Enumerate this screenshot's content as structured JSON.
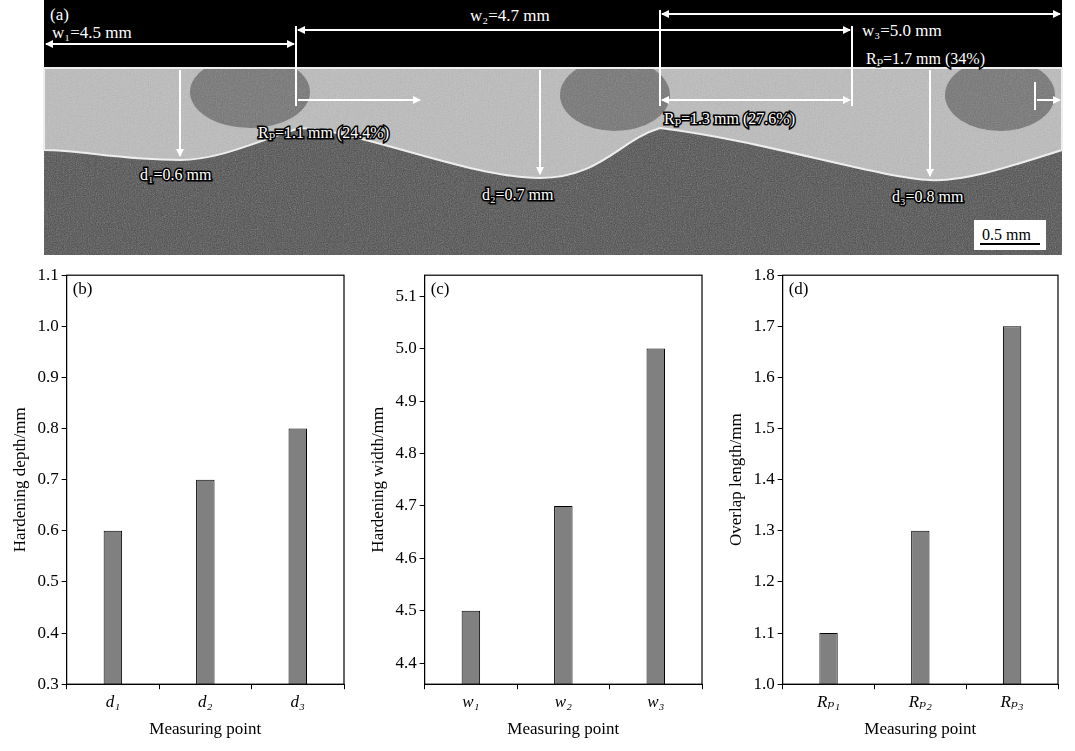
{
  "micrograph": {
    "panel": "(a)",
    "widths": [
      "w₁=4.5 mm",
      "w₂=4.7 mm",
      "w₃=5.0 mm"
    ],
    "overlaps": [
      "Rₚ=1.1 mm (24.4%)",
      "Rₚ=1.3 mm (27.6%)",
      "Rₚ=1.7 mm (34%)"
    ],
    "depths": [
      "d₁=0.6 mm",
      "d₂=0.7 mm",
      "d₃=0.8 mm"
    ],
    "scale_bar": "0.5 mm"
  },
  "chart_data": [
    {
      "type": "bar",
      "title": "(b)",
      "x_label": "Measuring point",
      "y_label": "Hardening depth/mm",
      "categories": [
        "d₁",
        "d₂",
        "d₃"
      ],
      "values": [
        0.6,
        0.7,
        0.8
      ],
      "color": "#808080",
      "ylim": [
        0.3,
        1.1
      ],
      "yticks": [
        0.3,
        0.4,
        0.5,
        0.6,
        0.7,
        0.8,
        0.9,
        {
          "value": 1,
          "label": "1.0"
        },
        1.1
      ],
      "grid": false,
      "legend": false
    },
    {
      "type": "bar",
      "title": "(c)",
      "x_label": "Measuring point",
      "y_label": "Hardening width/mm",
      "categories": [
        "w₁",
        "w₂",
        "w₃"
      ],
      "values": [
        4.5,
        4.7,
        5.0
      ],
      "color": "#808080",
      "ylim": [
        4.36,
        5.14
      ],
      "yticks": [
        4.4,
        4.5,
        4.6,
        4.7,
        4.8,
        4.9,
        {
          "value": 5,
          "label": "5.0"
        },
        5.1
      ],
      "grid": false,
      "legend": false
    },
    {
      "type": "bar",
      "title": "(d)",
      "x_label": "Measuring point",
      "y_label": "Overlap length/mm",
      "categories": [
        "Rₚ₁",
        "Rₚ₂",
        "Rₚ₃"
      ],
      "values": [
        1.1,
        1.3,
        1.7
      ],
      "color": "#808080",
      "ylim": [
        1,
        1.8
      ],
      "yticks": [
        {
          "value": 1,
          "label": "1.0"
        },
        1.1,
        1.2,
        1.3,
        1.4,
        1.5,
        1.6,
        1.7,
        1.8
      ],
      "grid": false,
      "legend": false
    }
  ]
}
